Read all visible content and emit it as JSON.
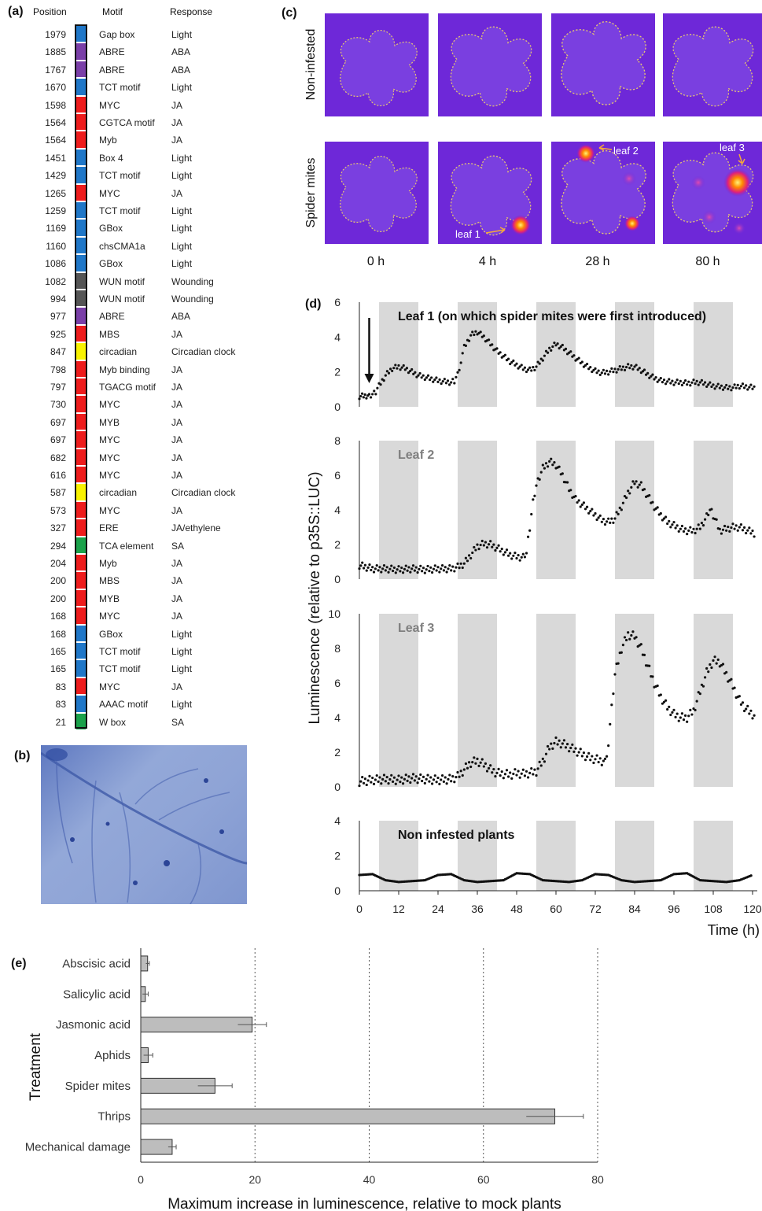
{
  "panel_labels": {
    "a": "(a)",
    "b": "(b)",
    "c": "(c)",
    "d": "(d)",
    "e": "(e)"
  },
  "motif_table": {
    "headers": {
      "position": "Position",
      "motif": "Motif",
      "response": "Response"
    },
    "response_colors": {
      "Light": "#1f77c8",
      "ABA": "#7a3fa8",
      "JA": "#ee1c1c",
      "Wounding": "#555555",
      "Circadian clock": "#f8f200",
      "JA/ethylene": "#ee1c1c",
      "SA": "#1aa24a"
    },
    "rows": [
      {
        "position": "1979",
        "motif": "Gap box",
        "response": "Light"
      },
      {
        "position": "1885",
        "motif": "ABRE",
        "response": "ABA"
      },
      {
        "position": "1767",
        "motif": "ABRE",
        "response": "ABA"
      },
      {
        "position": "1670",
        "motif": "TCT motif",
        "response": "Light"
      },
      {
        "position": "1598",
        "motif": "MYC",
        "response": "JA"
      },
      {
        "position": "1564",
        "motif": "CGTCA motif",
        "response": "JA"
      },
      {
        "position": "1564",
        "motif": "Myb",
        "response": "JA"
      },
      {
        "position": "1451",
        "motif": "Box 4",
        "response": "Light"
      },
      {
        "position": "1429",
        "motif": "TCT motif",
        "response": "Light"
      },
      {
        "position": "1265",
        "motif": "MYC",
        "response": "JA"
      },
      {
        "position": "1259",
        "motif": "TCT motif",
        "response": "Light"
      },
      {
        "position": "1169",
        "motif": "GBox",
        "response": "Light"
      },
      {
        "position": "1160",
        "motif": "chsCMA1a",
        "response": "Light"
      },
      {
        "position": "1086",
        "motif": "GBox",
        "response": "Light"
      },
      {
        "position": "1082",
        "motif": "WUN motif",
        "response": "Wounding"
      },
      {
        "position": "994",
        "motif": "WUN motif",
        "response": "Wounding"
      },
      {
        "position": "977",
        "motif": "ABRE",
        "response": "ABA"
      },
      {
        "position": "925",
        "motif": "MBS",
        "response": "JA"
      },
      {
        "position": "847",
        "motif": "circadian",
        "response": "Circadian clock"
      },
      {
        "position": "798",
        "motif": "Myb binding",
        "response": "JA"
      },
      {
        "position": "797",
        "motif": "TGACG motif",
        "response": "JA"
      },
      {
        "position": "730",
        "motif": "MYC",
        "response": "JA"
      },
      {
        "position": "697",
        "motif": "MYB",
        "response": "JA"
      },
      {
        "position": "697",
        "motif": "MYC",
        "response": "JA"
      },
      {
        "position": "682",
        "motif": "MYC",
        "response": "JA"
      },
      {
        "position": "616",
        "motif": "MYC",
        "response": "JA"
      },
      {
        "position": "587",
        "motif": "circadian",
        "response": "Circadian clock"
      },
      {
        "position": "573",
        "motif": "MYC",
        "response": "JA"
      },
      {
        "position": "327",
        "motif": "ERE",
        "response": "JA/ethylene"
      },
      {
        "position": "294",
        "motif": "TCA element",
        "response": "SA"
      },
      {
        "position": "204",
        "motif": "Myb",
        "response": "JA"
      },
      {
        "position": "200",
        "motif": "MBS",
        "response": "JA"
      },
      {
        "position": "200",
        "motif": "MYB",
        "response": "JA"
      },
      {
        "position": "168",
        "motif": "MYC",
        "response": "JA"
      },
      {
        "position": "168",
        "motif": "GBox",
        "response": "Light"
      },
      {
        "position": "165",
        "motif": "TCT motif",
        "response": "Light"
      },
      {
        "position": "165",
        "motif": "TCT motif",
        "response": "Light"
      },
      {
        "position": "83",
        "motif": "MYC",
        "response": "JA"
      },
      {
        "position": "83",
        "motif": "AAAC motif",
        "response": "Light"
      },
      {
        "position": "21",
        "motif": "W box",
        "response": "SA"
      }
    ]
  },
  "imaging": {
    "row_labels": [
      "Non-infested",
      "Spider mites"
    ],
    "time_labels": [
      "0 h",
      "4 h",
      "28 h",
      "80 h"
    ],
    "annotations": [
      "leaf 1",
      "leaf 2",
      "leaf 3"
    ]
  },
  "chart_data": [
    {
      "type": "line",
      "shared_ylabel": "Luminescence (relative to p35S::LUC)",
      "xlabel": "Time (h)",
      "xticks": [
        0,
        12,
        24,
        36,
        48,
        60,
        72,
        84,
        96,
        108,
        120
      ],
      "xlim": [
        0,
        122
      ],
      "dark_periods": [
        [
          6,
          18
        ],
        [
          30,
          42
        ],
        [
          54,
          66
        ],
        [
          78,
          90
        ],
        [
          102,
          114
        ]
      ],
      "panels": [
        {
          "title": "Leaf 1 (on which spider mites were first introduced)",
          "ylim": [
            0,
            6
          ],
          "yticks": [
            0,
            2,
            4,
            6
          ],
          "arrow_x": 3,
          "x": [
            0,
            3,
            5,
            6,
            8,
            10,
            12,
            14,
            16,
            18,
            20,
            22,
            24,
            26,
            28,
            29,
            30,
            31,
            32,
            34,
            36,
            38,
            40,
            42,
            44,
            46,
            48,
            50,
            52,
            54,
            56,
            58,
            60,
            62,
            64,
            66,
            68,
            70,
            72,
            74,
            76,
            78,
            80,
            82,
            84,
            86,
            88,
            90,
            92,
            94,
            96,
            98,
            100,
            102,
            104,
            106,
            108,
            110,
            112,
            114,
            116,
            118,
            120,
            122
          ],
          "y": [
            0.6,
            0.65,
            0.8,
            1.2,
            1.8,
            2.2,
            2.3,
            2.2,
            2.0,
            1.8,
            1.7,
            1.6,
            1.5,
            1.45,
            1.4,
            1.5,
            1.9,
            2.6,
            3.4,
            4.1,
            4.3,
            4.0,
            3.6,
            3.2,
            2.9,
            2.6,
            2.4,
            2.2,
            2.1,
            2.3,
            2.8,
            3.3,
            3.6,
            3.4,
            3.1,
            2.8,
            2.5,
            2.25,
            2.05,
            1.95,
            2.0,
            2.1,
            2.2,
            2.3,
            2.3,
            2.1,
            1.85,
            1.65,
            1.5,
            1.45,
            1.4,
            1.4,
            1.35,
            1.4,
            1.4,
            1.3,
            1.2,
            1.15,
            1.1,
            1.1,
            1.2,
            1.15,
            1.1,
            1.05
          ]
        },
        {
          "title": "Leaf 2",
          "ylim": [
            0,
            8
          ],
          "yticks": [
            0,
            2,
            4,
            6,
            8
          ],
          "x": [
            0,
            4,
            8,
            12,
            16,
            20,
            24,
            28,
            30,
            32,
            34,
            36,
            38,
            40,
            42,
            44,
            46,
            48,
            50,
            51,
            52,
            53,
            54,
            56,
            58,
            60,
            62,
            64,
            66,
            68,
            70,
            72,
            74,
            76,
            78,
            80,
            82,
            84,
            86,
            88,
            90,
            92,
            94,
            96,
            98,
            100,
            102,
            104,
            106,
            107,
            108,
            110,
            112,
            114,
            116,
            118,
            120,
            122
          ],
          "y": [
            0.8,
            0.6,
            0.6,
            0.55,
            0.6,
            0.55,
            0.6,
            0.6,
            0.7,
            0.9,
            1.4,
            1.9,
            2.05,
            2.0,
            1.8,
            1.6,
            1.4,
            1.3,
            1.25,
            1.5,
            3.0,
            4.5,
            5.5,
            6.4,
            6.8,
            6.6,
            6.0,
            5.2,
            4.6,
            4.3,
            4.0,
            3.7,
            3.4,
            3.3,
            3.5,
            4.2,
            5.0,
            5.6,
            5.4,
            4.8,
            4.2,
            3.7,
            3.3,
            3.1,
            2.9,
            2.8,
            2.8,
            3.0,
            3.6,
            4.0,
            3.7,
            2.8,
            2.9,
            3.0,
            3.0,
            2.85,
            2.7,
            2.5
          ]
        },
        {
          "title": "Leaf 3",
          "ylim": [
            0,
            10
          ],
          "yticks": [
            0,
            2,
            4,
            6,
            8,
            10
          ],
          "x": [
            0,
            4,
            8,
            12,
            16,
            20,
            24,
            28,
            30,
            32,
            34,
            36,
            38,
            40,
            42,
            44,
            46,
            48,
            50,
            52,
            54,
            56,
            58,
            60,
            62,
            64,
            66,
            68,
            70,
            72,
            74,
            75,
            76,
            77,
            78,
            80,
            82,
            84,
            86,
            88,
            90,
            92,
            94,
            96,
            98,
            100,
            102,
            104,
            106,
            108,
            110,
            112,
            114,
            116,
            118,
            120,
            122
          ],
          "y": [
            0.3,
            0.4,
            0.45,
            0.4,
            0.5,
            0.45,
            0.4,
            0.45,
            0.6,
            1.0,
            1.4,
            1.5,
            1.3,
            1.0,
            0.8,
            0.75,
            0.7,
            0.8,
            0.75,
            0.8,
            0.9,
            1.5,
            2.3,
            2.6,
            2.5,
            2.3,
            2.1,
            1.9,
            1.7,
            1.6,
            1.5,
            1.5,
            2.5,
            4.5,
            6.5,
            8.0,
            8.8,
            8.7,
            8.0,
            7.0,
            6.0,
            5.2,
            4.6,
            4.2,
            4.0,
            4.0,
            4.4,
            5.5,
            6.6,
            7.3,
            7.2,
            6.5,
            5.8,
            5.0,
            4.5,
            4.2,
            3.9
          ]
        },
        {
          "title": "Non infested plants",
          "ylim": [
            0,
            4
          ],
          "yticks": [
            0,
            2,
            4
          ],
          "x": [
            0,
            4,
            8,
            12,
            16,
            20,
            24,
            28,
            32,
            36,
            40,
            44,
            48,
            52,
            56,
            60,
            64,
            68,
            72,
            76,
            80,
            84,
            88,
            92,
            96,
            100,
            104,
            108,
            112,
            116,
            120
          ],
          "y": [
            0.9,
            0.95,
            0.6,
            0.5,
            0.55,
            0.6,
            0.9,
            0.95,
            0.6,
            0.5,
            0.55,
            0.6,
            1.0,
            0.95,
            0.6,
            0.55,
            0.5,
            0.6,
            0.95,
            0.9,
            0.6,
            0.5,
            0.55,
            0.6,
            0.95,
            1.0,
            0.6,
            0.55,
            0.5,
            0.6,
            0.9
          ]
        }
      ]
    },
    {
      "type": "bar",
      "orientation": "horizontal",
      "categories": [
        "Abscisic acid",
        "Salicylic acid",
        "Jasmonic acid",
        "Aphids",
        "Spider mites",
        "Thrips",
        "Mechanical damage"
      ],
      "values": [
        1.2,
        0.8,
        19.5,
        1.3,
        13,
        72.5,
        5.5
      ],
      "errors": [
        0.3,
        0.5,
        2.5,
        0.8,
        3,
        5,
        0.7
      ],
      "xlabel": "Maximum increase in luminescence, relative to mock plants",
      "ylabel": "Treatment",
      "xlim": [
        0,
        80
      ],
      "xticks": [
        0,
        20,
        40,
        60,
        80
      ],
      "grid": "vertical dotted"
    }
  ]
}
